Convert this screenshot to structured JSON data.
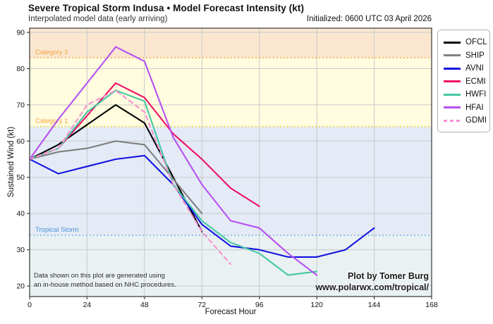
{
  "header": {
    "title": "Severe Tropical Storm Indusa • Model Forecast Intensity (kt)",
    "subtitle": "Interpolated model data (early arriving)",
    "initialized": "Initialized: 0600 UTC 03 April 2026"
  },
  "watermark": {
    "line1": "Plot by Tomer Burg",
    "line2": "www.polarwx.com/tropical/"
  },
  "disclaimer": {
    "line1": "Data shown on this plot are generated using",
    "line2": "an in-house method based on NHC procedures."
  },
  "axes": {
    "xlabel": "Forecast Hour",
    "ylabel": "Sustained Wind (kt)",
    "x_ticks": [
      0,
      24,
      48,
      72,
      96,
      120,
      144,
      168
    ],
    "y_ticks": [
      20,
      30,
      40,
      50,
      60,
      70,
      80,
      90
    ],
    "xlim": [
      0,
      168
    ],
    "ylim": [
      17,
      91.2
    ],
    "grid": true,
    "grid_color": "#c9c9c9"
  },
  "bands": [
    {
      "name": "hurricane-cat2-plus",
      "from": 83,
      "to": 91.2,
      "fill": "#fbe7d0"
    },
    {
      "name": "hurricane-cat1",
      "from": 64,
      "to": 83,
      "fill": "#fffcdf"
    },
    {
      "name": "tropical-storm",
      "from": 34,
      "to": 64,
      "fill": "#e4ebf6"
    },
    {
      "name": "tropical-depression",
      "from": 17,
      "to": 34,
      "fill": "#e9f1f2"
    }
  ],
  "thresholds": [
    {
      "label": "Category 2",
      "value": 83,
      "line_color": "#f4a641",
      "label_color": "#f5a13d"
    },
    {
      "label": "Category 1",
      "value": 64,
      "line_color": "#e3d935",
      "label_color": "#f5a13d"
    },
    {
      "label": "Tropical Storm",
      "value": 34,
      "line_color": "#79b0ee",
      "label_color": "#4a90d9"
    }
  ],
  "chart_data": {
    "type": "line",
    "title": "Severe Tropical Storm Indusa • Model Forecast Intensity (kt)",
    "xlabel": "Forecast Hour",
    "ylabel": "Sustained Wind (kt)",
    "x_unit": "hours",
    "y_unit": "kt",
    "legend_position": "upper right outside",
    "series": [
      {
        "name": "OFCL",
        "color": "#000000",
        "dash": false,
        "points": [
          [
            0,
            55
          ],
          [
            12,
            59
          ],
          [
            36,
            70
          ],
          [
            48,
            65
          ],
          [
            72,
            35
          ]
        ]
      },
      {
        "name": "SHIP",
        "color": "#808080",
        "dash": false,
        "points": [
          [
            0,
            55
          ],
          [
            12,
            57
          ],
          [
            24,
            58
          ],
          [
            36,
            60
          ],
          [
            48,
            59
          ],
          [
            72,
            40
          ]
        ]
      },
      {
        "name": "AVNI",
        "color": "#1414e0",
        "dash": false,
        "points": [
          [
            0,
            55
          ],
          [
            12,
            51
          ],
          [
            24,
            53
          ],
          [
            36,
            55
          ],
          [
            48,
            56
          ],
          [
            60,
            48
          ],
          [
            72,
            37
          ],
          [
            84,
            31
          ],
          [
            96,
            30
          ],
          [
            108,
            28
          ],
          [
            120,
            28
          ],
          [
            132,
            30
          ],
          [
            144,
            36
          ]
        ]
      },
      {
        "name": "ECMI",
        "color": "#ee1166",
        "dash": false,
        "points": [
          [
            0,
            55
          ],
          [
            12,
            58
          ],
          [
            24,
            67
          ],
          [
            36,
            76
          ],
          [
            48,
            72
          ],
          [
            60,
            62
          ],
          [
            72,
            55
          ],
          [
            84,
            47
          ],
          [
            96,
            42
          ]
        ]
      },
      {
        "name": "HWFI",
        "color": "#44c8a4",
        "dash": false,
        "points": [
          [
            0,
            55
          ],
          [
            12,
            58
          ],
          [
            24,
            68
          ],
          [
            36,
            74
          ],
          [
            48,
            71
          ],
          [
            60,
            48
          ],
          [
            72,
            38
          ],
          [
            84,
            32
          ],
          [
            96,
            29
          ],
          [
            108,
            23
          ],
          [
            120,
            24
          ]
        ]
      },
      {
        "name": "HFAI",
        "color": "#b650f2",
        "dash": false,
        "points": [
          [
            0,
            55
          ],
          [
            12,
            66
          ],
          [
            24,
            76
          ],
          [
            36,
            86
          ],
          [
            48,
            82
          ],
          [
            60,
            61
          ],
          [
            72,
            48
          ],
          [
            84,
            38
          ],
          [
            96,
            36
          ],
          [
            108,
            29
          ],
          [
            120,
            23
          ]
        ]
      },
      {
        "name": "GDMI",
        "color": "#f791d0",
        "dash": true,
        "points": [
          [
            0,
            55
          ],
          [
            12,
            58
          ],
          [
            24,
            70
          ],
          [
            36,
            74
          ],
          [
            48,
            68
          ],
          [
            60,
            48
          ],
          [
            72,
            35
          ],
          [
            84,
            26
          ]
        ]
      }
    ]
  }
}
